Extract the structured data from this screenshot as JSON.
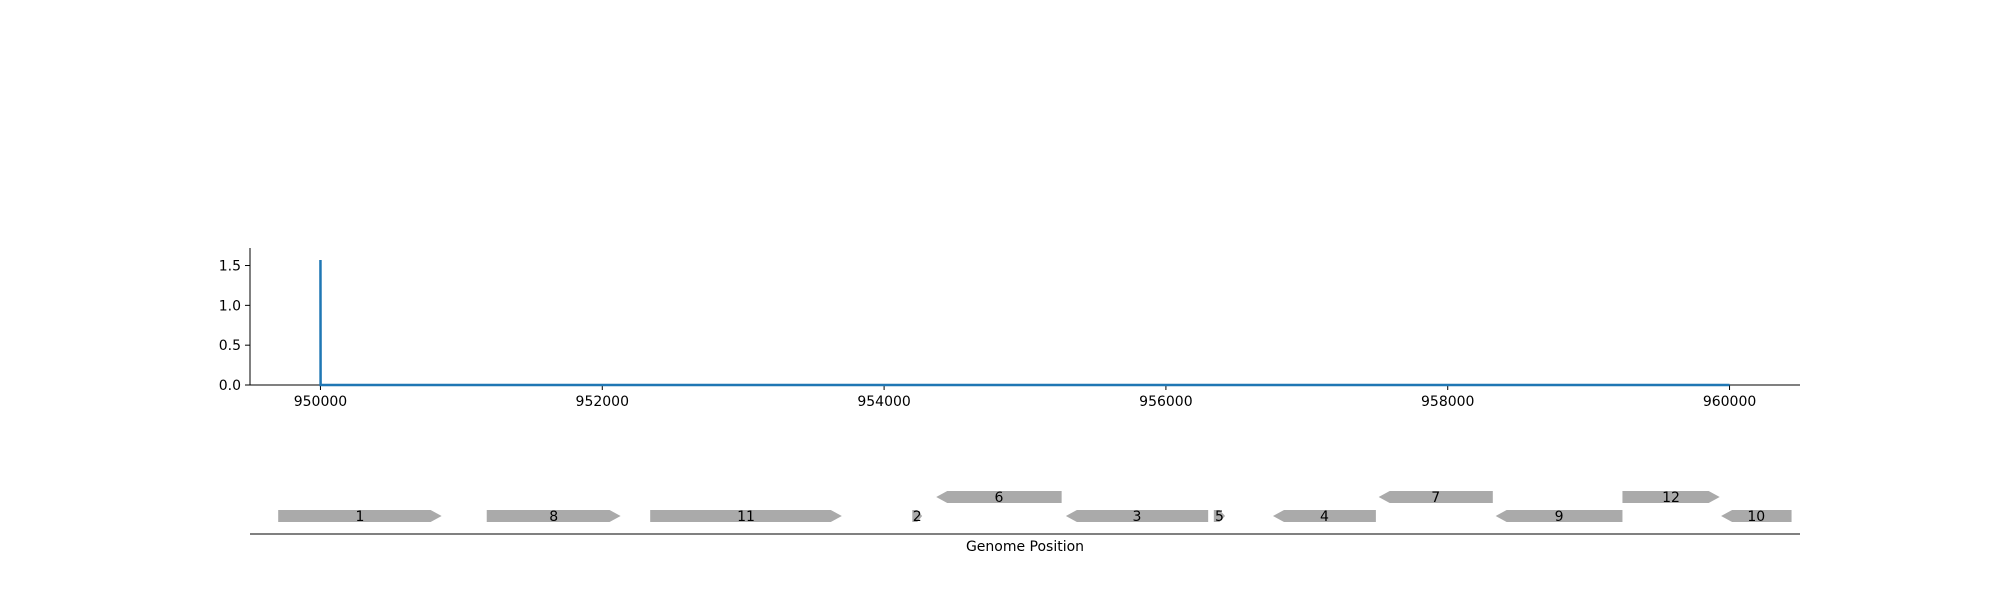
{
  "chart_data": [
    {
      "type": "line",
      "title": "",
      "xlabel": "",
      "ylabel": "",
      "x": [
        950000,
        950001,
        950002,
        960000
      ],
      "y": [
        1.57,
        0.0,
        0.0,
        0.0
      ],
      "xlim": [
        949500,
        960500
      ],
      "ylim": [
        0.0,
        1.72
      ],
      "xticks": [
        950000,
        952000,
        954000,
        956000,
        958000,
        960000
      ],
      "xtick_labels": [
        "950000",
        "952000",
        "954000",
        "956000",
        "958000",
        "960000"
      ],
      "yticks": [
        0.0,
        0.5,
        1.0,
        1.5
      ],
      "ytick_labels": [
        "0.0",
        "0.5",
        "1.0",
        "1.5"
      ],
      "grid": false,
      "colors": {
        "line": "#1f77b4",
        "axis": "#000000"
      }
    },
    {
      "type": "gene-track",
      "title": "",
      "xlabel": "Genome Position",
      "xlim": [
        949500,
        960500
      ],
      "genes": [
        {
          "label": "1",
          "start": 949700,
          "end": 950860,
          "strand": "+",
          "row": 0
        },
        {
          "label": "8",
          "start": 951180,
          "end": 952130,
          "strand": "+",
          "row": 0
        },
        {
          "label": "11",
          "start": 952340,
          "end": 953700,
          "strand": "+",
          "row": 0
        },
        {
          "label": "2",
          "start": 954200,
          "end": 954270,
          "strand": "+",
          "row": 0
        },
        {
          "label": "6",
          "start": 954370,
          "end": 955260,
          "strand": "-",
          "row": 1
        },
        {
          "label": "3",
          "start": 955290,
          "end": 956300,
          "strand": "-",
          "row": 0
        },
        {
          "label": "5",
          "start": 956340,
          "end": 956420,
          "strand": "+",
          "row": 0
        },
        {
          "label": "4",
          "start": 956760,
          "end": 957490,
          "strand": "-",
          "row": 0
        },
        {
          "label": "7",
          "start": 957510,
          "end": 958320,
          "strand": "-",
          "row": 1
        },
        {
          "label": "9",
          "start": 958340,
          "end": 959240,
          "strand": "-",
          "row": 0
        },
        {
          "label": "12",
          "start": 959240,
          "end": 959930,
          "strand": "+",
          "row": 1
        },
        {
          "label": "10",
          "start": 959940,
          "end": 960440,
          "strand": "-",
          "row": 0
        }
      ],
      "colors": {
        "gene": "#aaaaaa",
        "axis": "#000000"
      }
    }
  ]
}
